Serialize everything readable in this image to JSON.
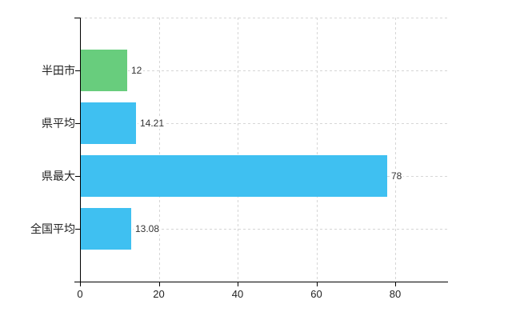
{
  "chart_data": {
    "type": "bar",
    "orientation": "horizontal",
    "categories": [
      "半田市",
      "県平均",
      "県最大",
      "全国平均"
    ],
    "values": [
      12,
      14.21,
      78,
      13.08
    ],
    "value_labels": [
      "12",
      "14.21",
      "78",
      "13.08"
    ],
    "series": [
      {
        "name": "",
        "values": [
          12,
          14.21,
          78,
          13.08
        ]
      }
    ],
    "x_tick_labels": [
      "0",
      "20",
      "40",
      "60",
      "80"
    ],
    "x_tick_values": [
      0,
      20,
      40,
      60,
      80
    ],
    "xlim": [
      0,
      93.4
    ],
    "xlabel": "",
    "ylabel": "",
    "grid": true,
    "grid_style": "dashed",
    "legend": false,
    "colors": {
      "bar_fills": [
        "#68CD7D",
        "#3FC0F1",
        "#3FC0F1",
        "#3FC0F1"
      ],
      "gridline": "#D6D6D6",
      "axis": "#000000",
      "category_text": "#222222",
      "value_text": "#333333",
      "tick_text": "#222222",
      "background": "#FFFFFF"
    }
  }
}
